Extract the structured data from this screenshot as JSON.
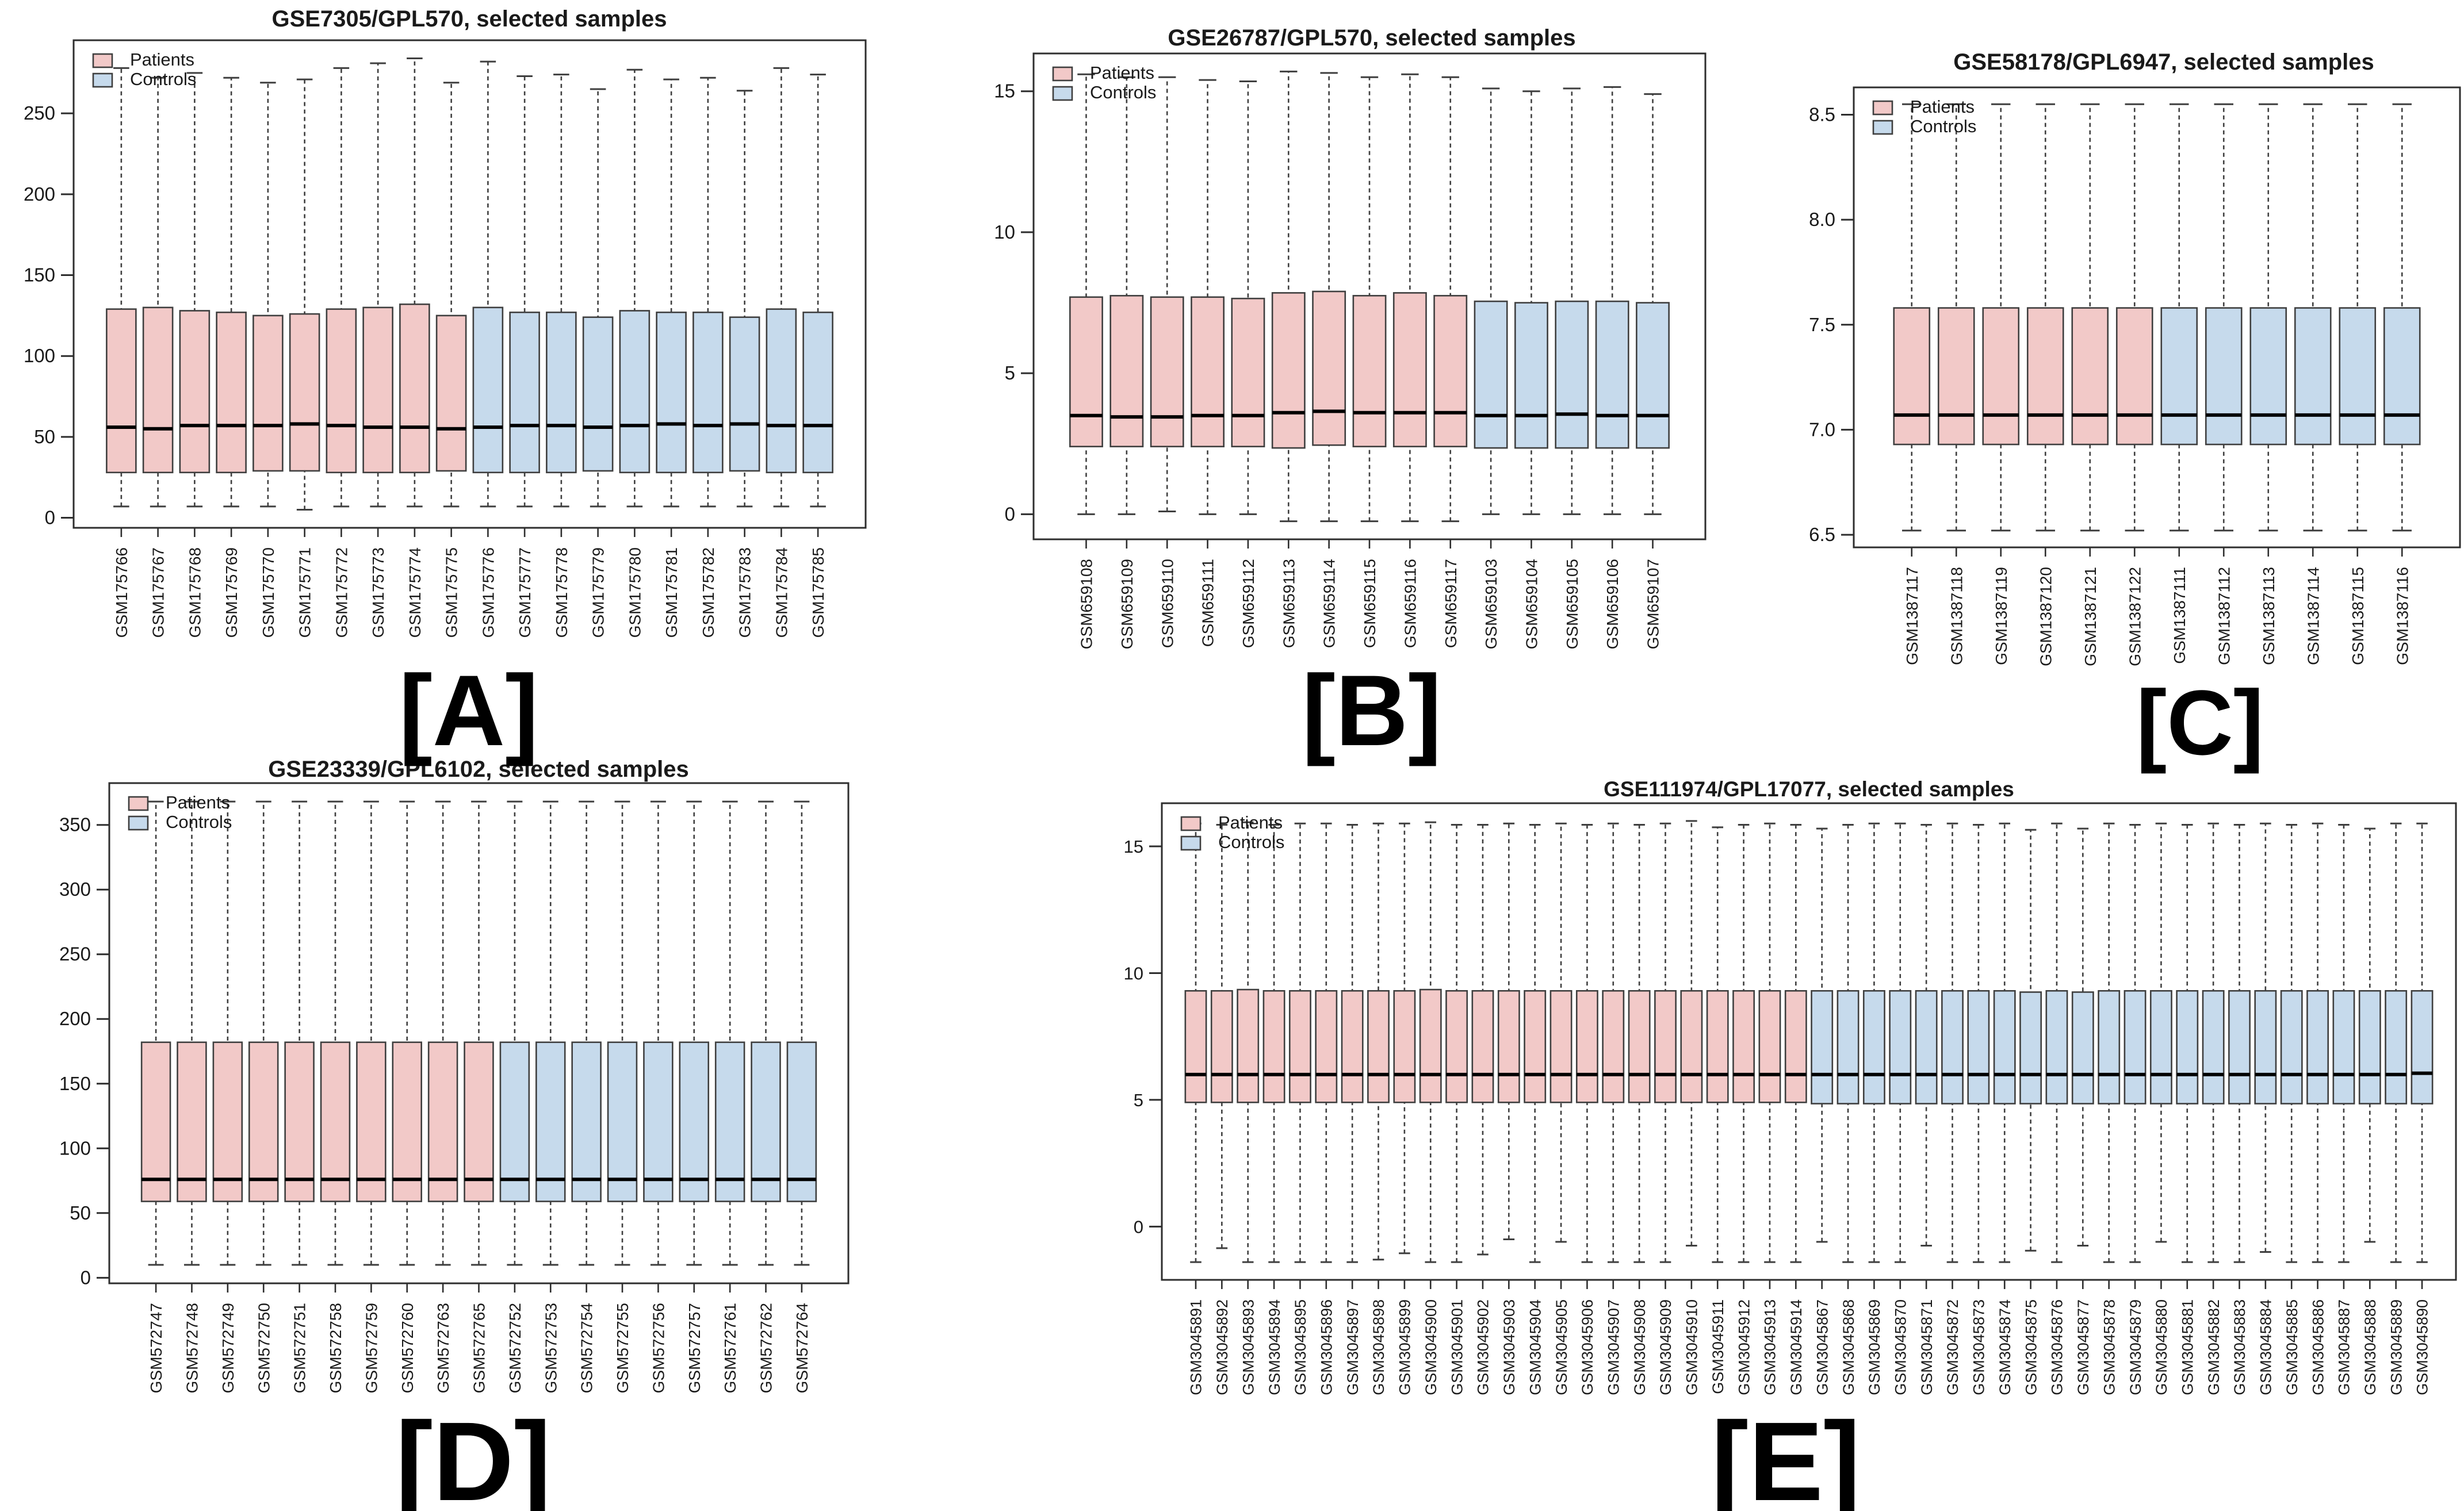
{
  "figure": {
    "background": "#ffffff",
    "axis_color": "#2e2e2e",
    "box_border_color": "#3f3f3f",
    "median_color": "#000000",
    "text_color": "#1a1a1a",
    "patients_color": "#F2C9C8",
    "controls_color": "#C6DAEC"
  },
  "chart_data": [
    {
      "type": "boxplot",
      "panel_label": "[A]",
      "title": "GSE7305/GPL570, selected samples",
      "legend": [
        {
          "label": "Patients",
          "color": "#F2C9C8"
        },
        {
          "label": "Controls",
          "color": "#C6DAEC"
        }
      ],
      "legend_position": "top-left",
      "grid": false,
      "ylim": [
        -6.2,
        295.2
      ],
      "yticks": [
        0,
        50,
        100,
        150,
        200,
        250
      ],
      "ytick_labels": [
        "0",
        "50",
        "100",
        "150",
        "200",
        "250"
      ],
      "samples": [
        "GSM175766",
        "GSM175767",
        "GSM175768",
        "GSM175769",
        "GSM175770",
        "GSM175771",
        "GSM175772",
        "GSM175773",
        "GSM175774",
        "GSM175775",
        "GSM175776",
        "GSM175777",
        "GSM175778",
        "GSM175779",
        "GSM175780",
        "GSM175781",
        "GSM175782",
        "GSM175783",
        "GSM175784",
        "GSM175785"
      ],
      "group_index": [
        0,
        0,
        0,
        0,
        0,
        0,
        0,
        0,
        0,
        0,
        1,
        1,
        1,
        1,
        1,
        1,
        1,
        1,
        1,
        1
      ],
      "boxes": [
        [
          7,
          28,
          56,
          129,
          278
        ],
        [
          7,
          28,
          55,
          130,
          272
        ],
        [
          7,
          28,
          57,
          128,
          275
        ],
        [
          7,
          28,
          57,
          127,
          272
        ],
        [
          7,
          29,
          57,
          125,
          269
        ],
        [
          5,
          29,
          58,
          126,
          271
        ],
        [
          7,
          28,
          57,
          129,
          278
        ],
        [
          7,
          28,
          56,
          130,
          281
        ],
        [
          7,
          28,
          56,
          132,
          284
        ],
        [
          7,
          29,
          55,
          125,
          269
        ],
        [
          7,
          28,
          56,
          130,
          282
        ],
        [
          7,
          28,
          57,
          127,
          273
        ],
        [
          7,
          28,
          57,
          127,
          274
        ],
        [
          7,
          29,
          56,
          124,
          265
        ],
        [
          7,
          28,
          57,
          128,
          277
        ],
        [
          7,
          28,
          58,
          127,
          271
        ],
        [
          7,
          28,
          57,
          127,
          272
        ],
        [
          7,
          29,
          58,
          124,
          264
        ],
        [
          7,
          28,
          57,
          129,
          278
        ],
        [
          7,
          28,
          57,
          127,
          274
        ]
      ]
    },
    {
      "type": "boxplot",
      "panel_label": "[B]",
      "title": "GSE26787/GPL570, selected samples",
      "legend": [
        {
          "label": "Patients",
          "color": "#F2C9C8"
        },
        {
          "label": "Controls",
          "color": "#C6DAEC"
        }
      ],
      "legend_position": "top-left",
      "grid": false,
      "ylim": [
        -0.89,
        16.34
      ],
      "yticks": [
        0,
        5,
        10,
        15
      ],
      "ytick_labels": [
        "0",
        "5",
        "10",
        "15"
      ],
      "samples": [
        "GSM659108",
        "GSM659109",
        "GSM659110",
        "GSM659111",
        "GSM659112",
        "GSM659113",
        "GSM659114",
        "GSM659115",
        "GSM659116",
        "GSM659117",
        "GSM659103",
        "GSM659104",
        "GSM659105",
        "GSM659106",
        "GSM659107"
      ],
      "group_index": [
        0,
        0,
        0,
        0,
        0,
        0,
        0,
        0,
        0,
        0,
        1,
        1,
        1,
        1,
        1
      ],
      "boxes": [
        [
          0,
          2.4,
          3.5,
          7.7,
          15.6
        ],
        [
          0,
          2.4,
          3.45,
          7.75,
          15.5
        ],
        [
          0.1,
          2.4,
          3.45,
          7.7,
          15.5
        ],
        [
          0,
          2.4,
          3.5,
          7.7,
          15.4
        ],
        [
          0,
          2.4,
          3.5,
          7.65,
          15.35
        ],
        [
          -0.25,
          2.35,
          3.6,
          7.85,
          15.7
        ],
        [
          -0.25,
          2.45,
          3.65,
          7.9,
          15.65
        ],
        [
          -0.25,
          2.4,
          3.6,
          7.75,
          15.5
        ],
        [
          -0.25,
          2.4,
          3.6,
          7.85,
          15.6
        ],
        [
          -0.25,
          2.4,
          3.6,
          7.75,
          15.5
        ],
        [
          0,
          2.35,
          3.5,
          7.55,
          15.1
        ],
        [
          0,
          2.35,
          3.5,
          7.5,
          15.0
        ],
        [
          0,
          2.35,
          3.55,
          7.55,
          15.1
        ],
        [
          0,
          2.35,
          3.5,
          7.55,
          15.15
        ],
        [
          0,
          2.35,
          3.5,
          7.5,
          14.9
        ]
      ]
    },
    {
      "type": "boxplot",
      "panel_label": "[C]",
      "title": "GSE58178/GPL6947, selected samples",
      "legend": [
        {
          "label": "Patients",
          "color": "#F2C9C8"
        },
        {
          "label": "Controls",
          "color": "#C6DAEC"
        }
      ],
      "legend_position": "top-left",
      "grid": false,
      "ylim": [
        6.44,
        8.63
      ],
      "yticks": [
        6.5,
        7.0,
        7.5,
        8.0,
        8.5
      ],
      "ytick_labels": [
        "6.5",
        "7.0",
        "7.5",
        "8.0",
        "8.5"
      ],
      "samples": [
        "GSM1387117",
        "GSM1387118",
        "GSM1387119",
        "GSM1387120",
        "GSM1387121",
        "GSM1387122",
        "GSM1387111",
        "GSM1387112",
        "GSM1387113",
        "GSM1387114",
        "GSM1387115",
        "GSM1387116"
      ],
      "group_index": [
        0,
        0,
        0,
        0,
        0,
        0,
        1,
        1,
        1,
        1,
        1,
        1
      ],
      "boxes": [
        [
          6.52,
          6.93,
          7.07,
          7.58,
          8.55
        ],
        [
          6.52,
          6.93,
          7.07,
          7.58,
          8.55
        ],
        [
          6.52,
          6.93,
          7.07,
          7.58,
          8.55
        ],
        [
          6.52,
          6.93,
          7.07,
          7.58,
          8.55
        ],
        [
          6.52,
          6.93,
          7.07,
          7.58,
          8.55
        ],
        [
          6.52,
          6.93,
          7.07,
          7.58,
          8.55
        ],
        [
          6.52,
          6.93,
          7.07,
          7.58,
          8.55
        ],
        [
          6.52,
          6.93,
          7.07,
          7.58,
          8.55
        ],
        [
          6.52,
          6.93,
          7.07,
          7.58,
          8.55
        ],
        [
          6.52,
          6.93,
          7.07,
          7.58,
          8.55
        ],
        [
          6.52,
          6.93,
          7.07,
          7.58,
          8.55
        ],
        [
          6.52,
          6.93,
          7.07,
          7.58,
          8.55
        ]
      ]
    },
    {
      "type": "boxplot",
      "panel_label": "[D]",
      "title": "GSE23339/GPL6102, selected samples",
      "legend": [
        {
          "label": "Patients",
          "color": "#F2C9C8"
        },
        {
          "label": "Controls",
          "color": "#C6DAEC"
        }
      ],
      "legend_position": "top-left",
      "grid": false,
      "ylim": [
        -4.3,
        382.3
      ],
      "yticks": [
        0,
        50,
        100,
        150,
        200,
        250,
        300,
        350
      ],
      "ytick_labels": [
        "0",
        "50",
        "100",
        "150",
        "200",
        "250",
        "300",
        "350"
      ],
      "samples": [
        "GSM572747",
        "GSM572748",
        "GSM572749",
        "GSM572750",
        "GSM572751",
        "GSM572758",
        "GSM572759",
        "GSM572760",
        "GSM572763",
        "GSM572765",
        "GSM572752",
        "GSM572753",
        "GSM572754",
        "GSM572755",
        "GSM572756",
        "GSM572757",
        "GSM572761",
        "GSM572762",
        "GSM572764"
      ],
      "group_index": [
        0,
        0,
        0,
        0,
        0,
        0,
        0,
        0,
        0,
        0,
        1,
        1,
        1,
        1,
        1,
        1,
        1,
        1,
        1
      ],
      "boxes": [
        [
          10,
          59,
          76,
          182,
          368
        ],
        [
          10,
          59,
          76,
          182,
          368
        ],
        [
          10,
          59,
          76,
          182,
          368
        ],
        [
          10,
          59,
          76,
          182,
          368
        ],
        [
          10,
          59,
          76,
          182,
          368
        ],
        [
          10,
          59,
          76,
          182,
          368
        ],
        [
          10,
          59,
          76,
          182,
          368
        ],
        [
          10,
          59,
          76,
          182,
          368
        ],
        [
          10,
          59,
          76,
          182,
          368
        ],
        [
          10,
          59,
          76,
          182,
          368
        ],
        [
          10,
          59,
          76,
          182,
          368
        ],
        [
          10,
          59,
          76,
          182,
          368
        ],
        [
          10,
          59,
          76,
          182,
          368
        ],
        [
          10,
          59,
          76,
          182,
          368
        ],
        [
          10,
          59,
          76,
          182,
          368
        ],
        [
          10,
          59,
          76,
          182,
          368
        ],
        [
          10,
          59,
          76,
          182,
          368
        ],
        [
          10,
          59,
          76,
          182,
          368
        ],
        [
          10,
          59,
          76,
          182,
          368
        ]
      ]
    },
    {
      "type": "boxplot",
      "panel_label": "[E]",
      "title": "GSE111974/GPL17077, selected samples",
      "legend": [
        {
          "label": "Patients",
          "color": "#F2C9C8"
        },
        {
          "label": "Controls",
          "color": "#C6DAEC"
        }
      ],
      "legend_position": "top-left",
      "grid": false,
      "ylim": [
        -2.1,
        16.7
      ],
      "yticks": [
        0,
        5,
        10,
        15
      ],
      "ytick_labels": [
        "0",
        "5",
        "10",
        "15"
      ],
      "samples": [
        "GSM3045891",
        "GSM3045892",
        "GSM3045893",
        "GSM3045894",
        "GSM3045895",
        "GSM3045896",
        "GSM3045897",
        "GSM3045898",
        "GSM3045899",
        "GSM3045900",
        "GSM3045901",
        "GSM3045902",
        "GSM3045903",
        "GSM3045904",
        "GSM3045905",
        "GSM3045906",
        "GSM3045907",
        "GSM3045908",
        "GSM3045909",
        "GSM3045910",
        "GSM3045911",
        "GSM3045912",
        "GSM3045913",
        "GSM3045914",
        "GSM3045867",
        "GSM3045868",
        "GSM3045869",
        "GSM3045870",
        "GSM3045871",
        "GSM3045872",
        "GSM3045873",
        "GSM3045874",
        "GSM3045875",
        "GSM3045876",
        "GSM3045877",
        "GSM3045878",
        "GSM3045879",
        "GSM3045880",
        "GSM3045881",
        "GSM3045882",
        "GSM3045883",
        "GSM3045884",
        "GSM3045885",
        "GSM3045886",
        "GSM3045887",
        "GSM3045888",
        "GSM3045889",
        "GSM3045890"
      ],
      "group_index": [
        0,
        0,
        0,
        0,
        0,
        0,
        0,
        0,
        0,
        0,
        0,
        0,
        0,
        0,
        0,
        0,
        0,
        0,
        0,
        0,
        0,
        0,
        0,
        0,
        1,
        1,
        1,
        1,
        1,
        1,
        1,
        1,
        1,
        1,
        1,
        1,
        1,
        1,
        1,
        1,
        1,
        1,
        1,
        1,
        1,
        1,
        1,
        1
      ],
      "boxes": [
        [
          -1.4,
          4.9,
          6.0,
          9.3,
          15.9
        ],
        [
          -0.85,
          4.9,
          6.0,
          9.3,
          15.85
        ],
        [
          -1.4,
          4.9,
          6.0,
          9.35,
          15.95
        ],
        [
          -1.4,
          4.9,
          6.0,
          9.3,
          15.85
        ],
        [
          -1.4,
          4.9,
          6.0,
          9.3,
          15.9
        ],
        [
          -1.4,
          4.9,
          6.0,
          9.3,
          15.9
        ],
        [
          -1.4,
          4.9,
          6.0,
          9.3,
          15.85
        ],
        [
          -1.3,
          4.9,
          6.0,
          9.3,
          15.9
        ],
        [
          -1.05,
          4.9,
          6.0,
          9.3,
          15.9
        ],
        [
          -1.4,
          4.9,
          6.0,
          9.35,
          15.95
        ],
        [
          -1.4,
          4.9,
          6.0,
          9.3,
          15.85
        ],
        [
          -1.1,
          4.9,
          6.0,
          9.3,
          15.85
        ],
        [
          -0.5,
          4.9,
          6.0,
          9.3,
          15.9
        ],
        [
          -1.4,
          4.9,
          6.0,
          9.3,
          15.85
        ],
        [
          -0.6,
          4.9,
          6.0,
          9.3,
          15.9
        ],
        [
          -1.4,
          4.9,
          6.0,
          9.3,
          15.85
        ],
        [
          -1.4,
          4.9,
          6.0,
          9.3,
          15.9
        ],
        [
          -1.4,
          4.9,
          6.0,
          9.3,
          15.85
        ],
        [
          -1.4,
          4.9,
          6.0,
          9.3,
          15.9
        ],
        [
          -0.75,
          4.9,
          6.0,
          9.3,
          16.0
        ],
        [
          -1.4,
          4.9,
          6.0,
          9.3,
          15.75
        ],
        [
          -1.4,
          4.9,
          6.0,
          9.3,
          15.85
        ],
        [
          -1.4,
          4.9,
          6.0,
          9.3,
          15.9
        ],
        [
          -1.4,
          4.9,
          6.0,
          9.3,
          15.85
        ],
        [
          -0.6,
          4.85,
          6.0,
          9.3,
          15.7
        ],
        [
          -1.4,
          4.85,
          6.0,
          9.3,
          15.85
        ],
        [
          -1.4,
          4.85,
          6.0,
          9.3,
          15.9
        ],
        [
          -1.4,
          4.85,
          6.0,
          9.3,
          15.9
        ],
        [
          -0.75,
          4.85,
          6.0,
          9.3,
          15.85
        ],
        [
          -1.4,
          4.85,
          6.0,
          9.3,
          15.9
        ],
        [
          -1.4,
          4.85,
          6.0,
          9.3,
          15.85
        ],
        [
          -1.4,
          4.85,
          6.0,
          9.3,
          15.9
        ],
        [
          -0.95,
          4.85,
          6.0,
          9.25,
          15.65
        ],
        [
          -1.4,
          4.85,
          6.0,
          9.3,
          15.9
        ],
        [
          -0.75,
          4.85,
          6.0,
          9.25,
          15.7
        ],
        [
          -1.4,
          4.85,
          6.0,
          9.3,
          15.9
        ],
        [
          -1.4,
          4.85,
          6.0,
          9.3,
          15.85
        ],
        [
          -0.6,
          4.85,
          6.0,
          9.3,
          15.9
        ],
        [
          -1.4,
          4.85,
          6.0,
          9.3,
          15.85
        ],
        [
          -1.4,
          4.85,
          6.0,
          9.3,
          15.9
        ],
        [
          -1.4,
          4.85,
          6.0,
          9.3,
          15.85
        ],
        [
          -1.0,
          4.85,
          6.0,
          9.3,
          15.9
        ],
        [
          -1.4,
          4.85,
          6.0,
          9.3,
          15.85
        ],
        [
          -1.4,
          4.85,
          6.0,
          9.3,
          15.9
        ],
        [
          -1.4,
          4.85,
          6.0,
          9.3,
          15.85
        ],
        [
          -0.6,
          4.85,
          6.0,
          9.3,
          15.7
        ],
        [
          -1.4,
          4.85,
          6.0,
          9.3,
          15.9
        ],
        [
          -1.4,
          4.85,
          6.05,
          9.3,
          15.9
        ]
      ]
    }
  ]
}
